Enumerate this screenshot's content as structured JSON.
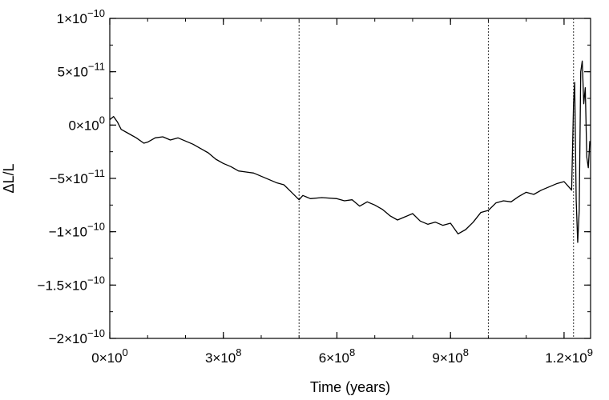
{
  "chart_data": {
    "type": "line",
    "xlabel": "Time (years)",
    "ylabel": "ΔL/L",
    "xlim": [
      0,
      1270000000
    ],
    "ylim": [
      -2e-10,
      1e-10
    ],
    "xticks": [
      {
        "value": 0,
        "mant": "0×10",
        "exp": "0"
      },
      {
        "value": 300000000,
        "mant": "3×10",
        "exp": "8"
      },
      {
        "value": 600000000,
        "mant": "6×10",
        "exp": "8"
      },
      {
        "value": 900000000,
        "mant": "9×10",
        "exp": "8"
      },
      {
        "value": 1200000000,
        "mant": "1.2×10",
        "exp": "9"
      }
    ],
    "yticks": [
      {
        "value": 1e-10,
        "mant": "1×10",
        "exp": "−10"
      },
      {
        "value": 5e-11,
        "mant": "5×10",
        "exp": "−11"
      },
      {
        "value": 0,
        "mant": "0×10",
        "exp": "0"
      },
      {
        "value": -5e-11,
        "mant": "−5×10",
        "exp": "−11"
      },
      {
        "value": -1e-10,
        "mant": "−1×10",
        "exp": "−10"
      },
      {
        "value": -1.5e-10,
        "mant": "−1.5×10",
        "exp": "−10"
      },
      {
        "value": -2e-10,
        "mant": "−2×10",
        "exp": "−10"
      }
    ],
    "minor_x_step": 100000000,
    "minor_y_step": 2.5e-11,
    "vlines": [
      500000000,
      1000000000,
      1225000000
    ],
    "grid": false,
    "series": [
      {
        "x": [
          0,
          10000000,
          20000000,
          30000000,
          50000000,
          70000000,
          90000000,
          100000000,
          120000000,
          140000000,
          160000000,
          180000000,
          200000000,
          220000000,
          240000000,
          260000000,
          280000000,
          300000000,
          320000000,
          340000000,
          360000000,
          380000000,
          400000000,
          420000000,
          440000000,
          460000000,
          480000000,
          500000000,
          510000000,
          530000000,
          560000000,
          600000000,
          620000000,
          640000000,
          660000000,
          680000000,
          700000000,
          720000000,
          740000000,
          760000000,
          780000000,
          800000000,
          820000000,
          840000000,
          860000000,
          880000000,
          900000000,
          920000000,
          940000000,
          960000000,
          980000000,
          1000000000,
          1020000000,
          1040000000,
          1060000000,
          1080000000,
          1100000000,
          1120000000,
          1140000000,
          1160000000,
          1180000000,
          1200000000,
          1210000000,
          1220000000,
          1225000000,
          1228000000,
          1232000000,
          1236000000,
          1240000000,
          1244000000,
          1248000000,
          1252000000,
          1256000000,
          1260000000,
          1264000000,
          1268000000
        ],
        "y": [
          5e-12,
          8e-12,
          3e-12,
          -4e-12,
          -8e-12,
          -1.2e-11,
          -1.7e-11,
          -1.6e-11,
          -1.2e-11,
          -1.1e-11,
          -1.4e-11,
          -1.2e-11,
          -1.5e-11,
          -1.8e-11,
          -2.2e-11,
          -2.6e-11,
          -3.2e-11,
          -3.6e-11,
          -3.9e-11,
          -4.3e-11,
          -4.4e-11,
          -4.5e-11,
          -4.8e-11,
          -5.1e-11,
          -5.4e-11,
          -5.6e-11,
          -6.3e-11,
          -7e-11,
          -6.6e-11,
          -6.9e-11,
          -6.8e-11,
          -6.9e-11,
          -7.1e-11,
          -7e-11,
          -7.6e-11,
          -7.2e-11,
          -7.5e-11,
          -7.9e-11,
          -8.5e-11,
          -8.9e-11,
          -8.6e-11,
          -8.3e-11,
          -9e-11,
          -9.3e-11,
          -9.1e-11,
          -9.4e-11,
          -9.2e-11,
          -1.02e-10,
          -9.8e-11,
          -9.1e-11,
          -8.2e-11,
          -8e-11,
          -7.3e-11,
          -7.1e-11,
          -7.2e-11,
          -6.7e-11,
          -6.3e-11,
          -6.5e-11,
          -6.1e-11,
          -5.8e-11,
          -5.5e-11,
          -5.3e-11,
          -5.7e-11,
          -6.1e-11,
          2e-11,
          4e-11,
          -7e-11,
          -1.1e-10,
          -8e-11,
          5e-11,
          6e-11,
          2e-11,
          3.5e-11,
          -3e-11,
          -4e-11,
          -1.5e-11
        ]
      }
    ]
  }
}
